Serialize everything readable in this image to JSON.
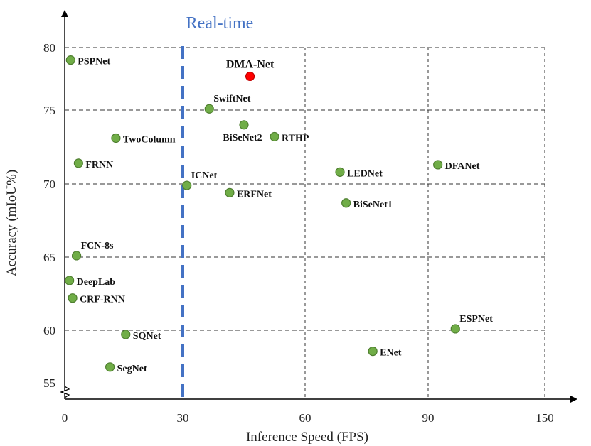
{
  "chart_data": {
    "type": "scatter",
    "xlabel": "Inference Speed (FPS)",
    "ylabel": "Accuracy (mIoU%)",
    "xlim": [
      0,
      160
    ],
    "ylim": [
      54,
      82
    ],
    "x_ticks": [
      0,
      30,
      60,
      90,
      150
    ],
    "x_tick_labels": [
      "0",
      "30",
      "60",
      "90",
      "150"
    ],
    "y_ticks": [
      55,
      60,
      65,
      70,
      75,
      80
    ],
    "y_tick_labels": [
      "55",
      "60",
      "65",
      "70",
      "75",
      "80"
    ],
    "grid": "dashed, at tick values",
    "axis_break": "y-axis, near 55",
    "realtime_line": {
      "x": 30,
      "label": "Real-time",
      "color": "#4472C4"
    },
    "colors": {
      "point": "#70AD47",
      "point_edge": "#4E7E2F",
      "highlight": "#FF0000",
      "highlight_edge": "#C00000"
    },
    "points": [
      {
        "name": "PSPNet",
        "x": 1.5,
        "y": 79.0,
        "highlight": false,
        "label_pos": "right"
      },
      {
        "name": "DMA-Net",
        "x": 46.5,
        "y": 77.7,
        "highlight": true,
        "label_pos": "above"
      },
      {
        "name": "SwiftNet",
        "x": 36.5,
        "y": 75.1,
        "highlight": false,
        "label_pos": "above-right"
      },
      {
        "name": "BiSeNet2",
        "x": 45.0,
        "y": 74.0,
        "highlight": false,
        "label_pos": "below"
      },
      {
        "name": "RTHP",
        "x": 52.5,
        "y": 73.2,
        "highlight": false,
        "label_pos": "right"
      },
      {
        "name": "TwoColumn",
        "x": 13.0,
        "y": 73.1,
        "highlight": false,
        "label_pos": "right"
      },
      {
        "name": "FRNN",
        "x": 3.5,
        "y": 71.4,
        "highlight": false,
        "label_pos": "right"
      },
      {
        "name": "ICNet",
        "x": 31.0,
        "y": 69.9,
        "highlight": false,
        "label_pos": "above-right"
      },
      {
        "name": "ERFNet",
        "x": 41.5,
        "y": 69.4,
        "highlight": false,
        "label_pos": "right"
      },
      {
        "name": "LEDNet",
        "x": 68.5,
        "y": 70.8,
        "highlight": false,
        "label_pos": "right"
      },
      {
        "name": "BiSeNet1",
        "x": 70.0,
        "y": 68.7,
        "highlight": false,
        "label_pos": "right"
      },
      {
        "name": "DFANet",
        "x": 95.0,
        "y": 71.3,
        "highlight": false,
        "label_pos": "right"
      },
      {
        "name": "FCN-8s",
        "x": 3.0,
        "y": 65.1,
        "highlight": false,
        "label_pos": "above-right"
      },
      {
        "name": "DeepLab",
        "x": 1.2,
        "y": 63.4,
        "highlight": false,
        "label_pos": "right"
      },
      {
        "name": "CRF-RNN",
        "x": 2.0,
        "y": 62.2,
        "highlight": false,
        "label_pos": "right"
      },
      {
        "name": "SQNet",
        "x": 15.5,
        "y": 59.6,
        "highlight": false,
        "label_pos": "right"
      },
      {
        "name": "SegNet",
        "x": 11.5,
        "y": 56.5,
        "highlight": false,
        "label_pos": "right"
      },
      {
        "name": "ENet",
        "x": 76.5,
        "y": 58.0,
        "highlight": false,
        "label_pos": "right"
      },
      {
        "name": "ESPNet",
        "x": 104.0,
        "y": 60.1,
        "highlight": false,
        "label_pos": "above-right"
      }
    ]
  }
}
